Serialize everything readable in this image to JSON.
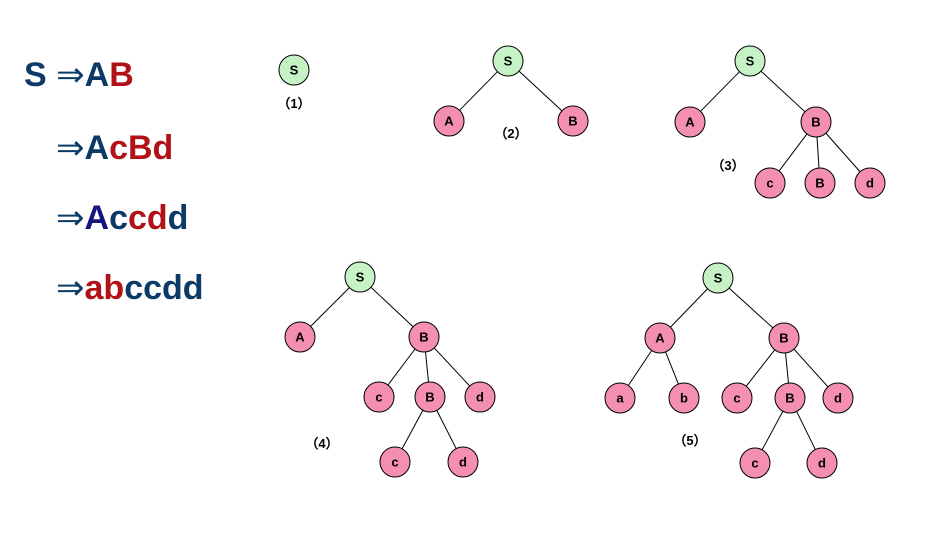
{
  "colors": {
    "navy": "#0b3a66",
    "darkblue": "#16127e",
    "red": "#b01217",
    "root_fill": "#c6f2c6",
    "node_fill": "#f48fb1"
  },
  "derivation": [
    {
      "segments": [
        {
          "text": "S ",
          "color": "navy"
        },
        {
          "text": "⇒",
          "color": "navy",
          "arrow": true
        },
        {
          "text": "A",
          "color": "navy"
        },
        {
          "text": "B",
          "color": "red"
        }
      ]
    },
    {
      "segments": [
        {
          "text": "⇒",
          "color": "navy",
          "arrow": true
        },
        {
          "text": "A",
          "color": "navy"
        },
        {
          "text": "cBd",
          "color": "red"
        }
      ]
    },
    {
      "segments": [
        {
          "text": "⇒",
          "color": "navy",
          "arrow": true
        },
        {
          "text": "A",
          "color": "darkblue"
        },
        {
          "text": "c",
          "color": "navy"
        },
        {
          "text": "cd",
          "color": "red"
        },
        {
          "text": "d",
          "color": "navy"
        }
      ]
    },
    {
      "segments": [
        {
          "text": "⇒",
          "color": "navy",
          "arrow": true
        },
        {
          "text": "ab",
          "color": "red"
        },
        {
          "text": "ccdd",
          "color": "navy"
        }
      ]
    }
  ],
  "trees": [
    {
      "caption": "（1）",
      "nodes": [
        {
          "label": "S",
          "root": true
        }
      ],
      "edges": []
    },
    {
      "caption": "（2）",
      "nodes": [
        {
          "label": "S",
          "root": true
        },
        {
          "label": "A"
        },
        {
          "label": "B"
        }
      ],
      "edges": [
        [
          0,
          1
        ],
        [
          0,
          2
        ]
      ]
    },
    {
      "caption": "（3）",
      "nodes": [
        {
          "label": "S",
          "root": true
        },
        {
          "label": "A"
        },
        {
          "label": "B"
        },
        {
          "label": "c"
        },
        {
          "label": "B"
        },
        {
          "label": "d"
        }
      ],
      "edges": [
        [
          0,
          1
        ],
        [
          0,
          2
        ],
        [
          2,
          3
        ],
        [
          2,
          4
        ],
        [
          2,
          5
        ]
      ]
    },
    {
      "caption": "（4）",
      "nodes": [
        {
          "label": "S",
          "root": true
        },
        {
          "label": "A"
        },
        {
          "label": "B"
        },
        {
          "label": "c"
        },
        {
          "label": "B"
        },
        {
          "label": "d"
        },
        {
          "label": "c"
        },
        {
          "label": "d"
        }
      ],
      "edges": [
        [
          0,
          1
        ],
        [
          0,
          2
        ],
        [
          2,
          3
        ],
        [
          2,
          4
        ],
        [
          2,
          5
        ],
        [
          4,
          6
        ],
        [
          4,
          7
        ]
      ]
    },
    {
      "caption": "（5）",
      "nodes": [
        {
          "label": "S",
          "root": true
        },
        {
          "label": "A"
        },
        {
          "label": "B"
        },
        {
          "label": "a"
        },
        {
          "label": "b"
        },
        {
          "label": "c"
        },
        {
          "label": "B"
        },
        {
          "label": "d"
        },
        {
          "label": "c"
        },
        {
          "label": "d"
        }
      ],
      "edges": [
        [
          0,
          1
        ],
        [
          0,
          2
        ],
        [
          1,
          3
        ],
        [
          1,
          4
        ],
        [
          2,
          5
        ],
        [
          2,
          6
        ],
        [
          2,
          7
        ],
        [
          6,
          8
        ],
        [
          6,
          9
        ]
      ]
    }
  ]
}
